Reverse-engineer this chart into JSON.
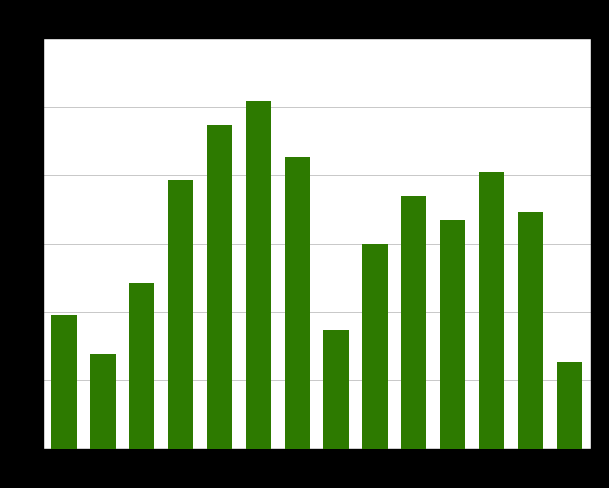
{
  "values": [
    8.5,
    6.0,
    10.5,
    17.0,
    20.5,
    22.0,
    18.5,
    7.5,
    13.0,
    16.0,
    14.5,
    17.5,
    15.0,
    5.5
  ],
  "bar_color": "#2d7a00",
  "background_color": "#ffffff",
  "figure_background": "#000000",
  "grid_color": "#c8c8c8",
  "ylim": [
    0,
    26
  ],
  "figsize": [
    6.09,
    4.89
  ],
  "dpi": 100,
  "bar_width": 0.65
}
